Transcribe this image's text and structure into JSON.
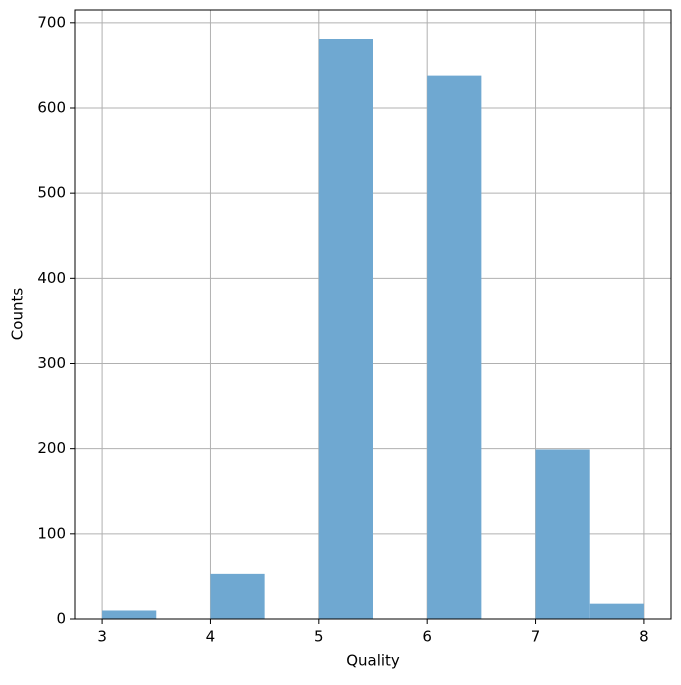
{
  "chart_data": {
    "type": "histogram",
    "xlabel": "Quality",
    "ylabel": "Counts",
    "bins": [
      3,
      3.5,
      4,
      4.5,
      5,
      5.5,
      6,
      6.5,
      7,
      7.5,
      8
    ],
    "values": [
      10,
      0,
      53,
      0,
      681,
      0,
      638,
      0,
      199,
      18
    ],
    "color": "#6fa8d1",
    "xlim": [
      2.75,
      8.25
    ],
    "xticks": [
      3,
      4,
      5,
      6,
      7,
      8
    ],
    "ylim": [
      0,
      715.05
    ],
    "yticks": [
      0,
      100,
      200,
      300,
      400,
      500,
      600,
      700
    ],
    "grid": true
  }
}
